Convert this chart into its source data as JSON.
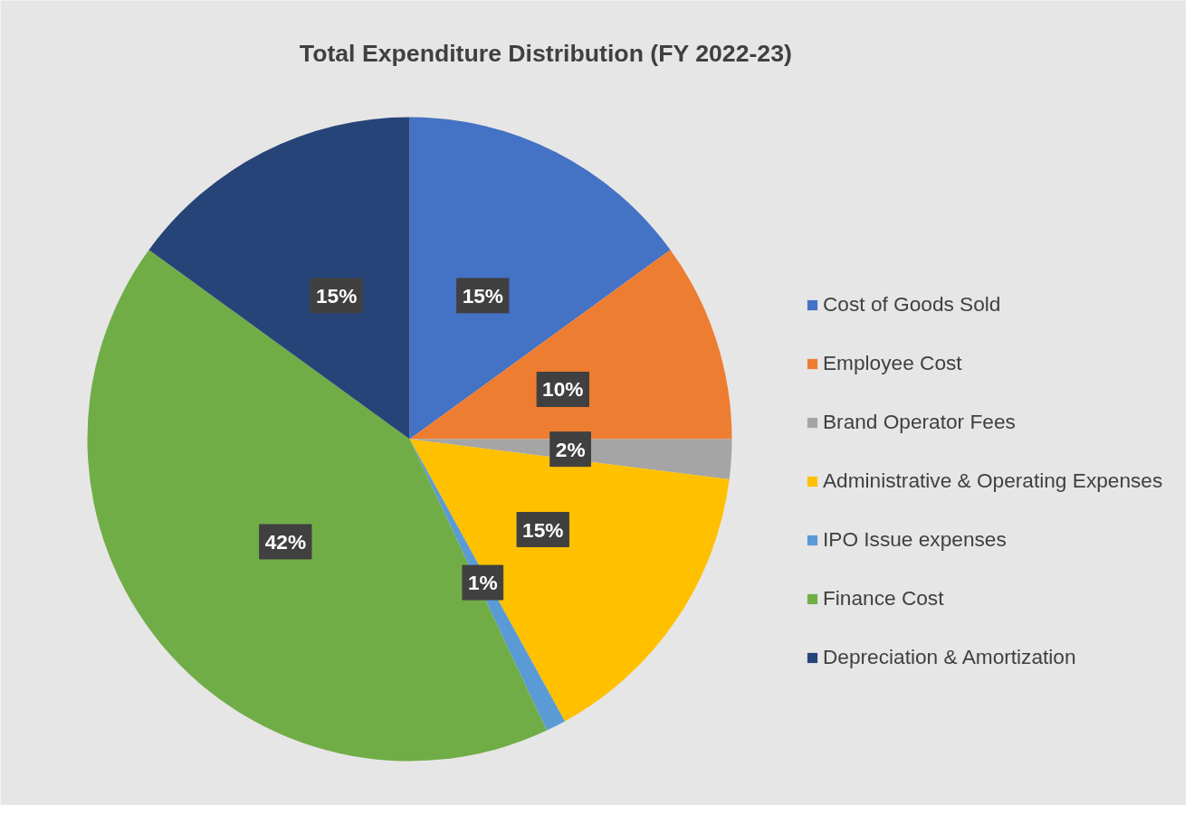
{
  "chart_data": {
    "type": "pie",
    "title": "Total Expenditure Distribution (FY 2022-23)",
    "categories": [
      "Cost of Goods Sold",
      "Employee Cost",
      "Brand Operator Fees",
      "Administrative & Operating Expenses",
      "IPO Issue expenses",
      "Finance Cost",
      "Depreciation & Amortization"
    ],
    "values": [
      15,
      10,
      2,
      15,
      1,
      42,
      15
    ],
    "value_labels": [
      "15%",
      "10%",
      "2%",
      "15%",
      "1%",
      "42%",
      "15%"
    ],
    "colors": [
      "#4472c4",
      "#ed7d31",
      "#a5a5a5",
      "#ffc000",
      "#5b9bd5",
      "#70ad47",
      "#264478"
    ],
    "legend": "right"
  }
}
